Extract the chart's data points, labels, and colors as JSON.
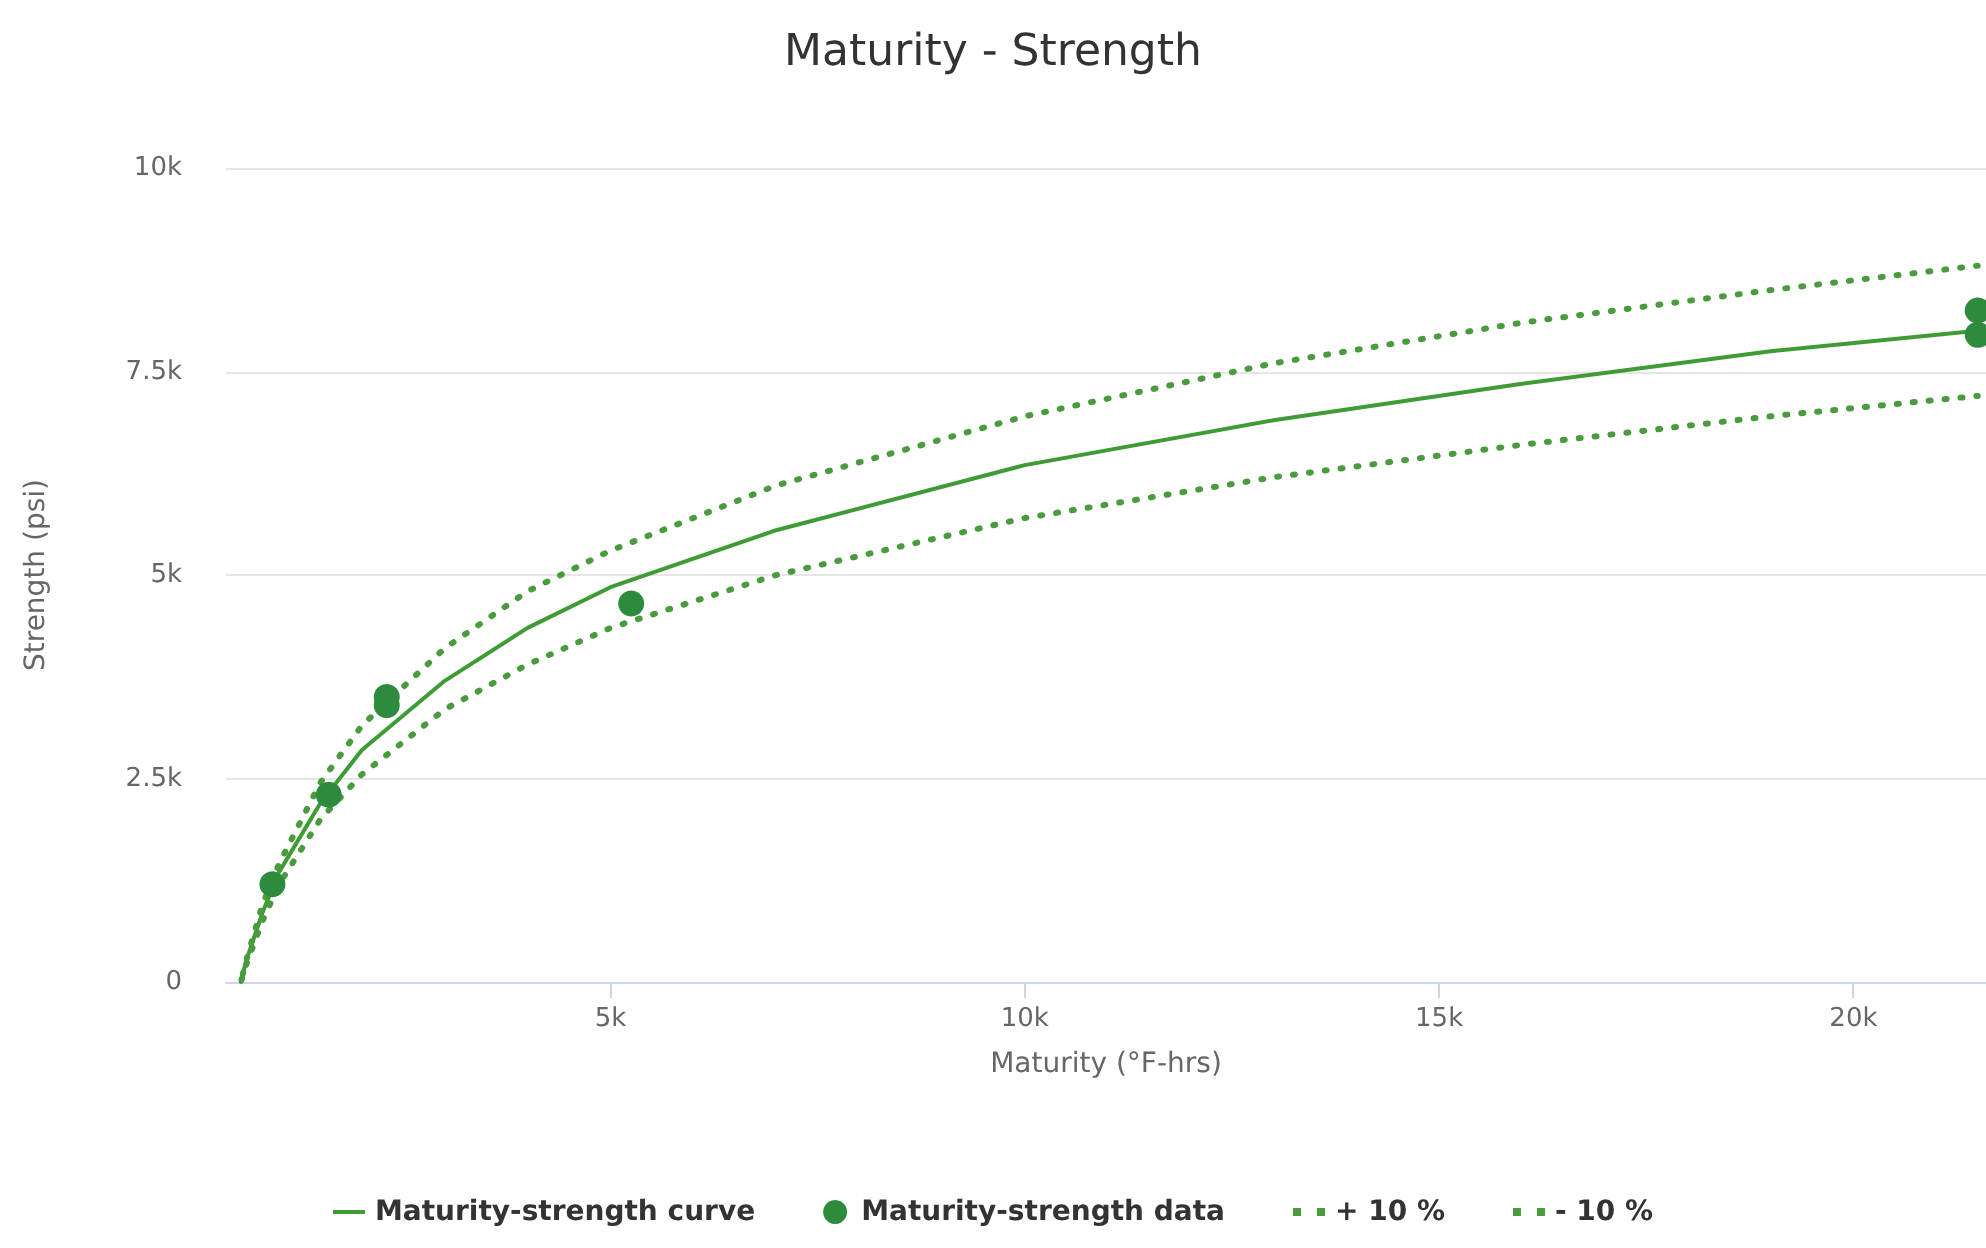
{
  "chart_data": {
    "type": "line",
    "title": "Maturity - Strength",
    "xlabel": "Maturity (°F-hrs)",
    "ylabel": "Strength (psi)",
    "xlim": [
      360,
      21600
    ],
    "xticks": [
      {
        "value": 5000,
        "label": "5k"
      },
      {
        "value": 10000,
        "label": "10k"
      },
      {
        "value": 15000,
        "label": "15k"
      },
      {
        "value": 20000,
        "label": "20k"
      }
    ],
    "ylim": [
      0,
      10000
    ],
    "yticks": [
      {
        "value": 0,
        "label": "0"
      },
      {
        "value": 2500,
        "label": "2.5k"
      },
      {
        "value": 5000,
        "label": "5k"
      },
      {
        "value": 7500,
        "label": "7.5k"
      },
      {
        "value": 10000,
        "label": "10k"
      }
    ],
    "grid": "y",
    "legend": "bottom",
    "marker": "none",
    "series": [
      {
        "name": "Maturity-strength curve",
        "color": "#3f9b35",
        "line_style": "solid",
        "x": [
          540,
          600,
          800,
          1000,
          1500,
          2000,
          3000,
          4000,
          5000,
          7000,
          10000,
          13000,
          16000,
          19000,
          21500
        ],
        "values": [
          0,
          250,
          850,
          1350,
          2200,
          2850,
          3700,
          4350,
          4850,
          5550,
          6350,
          6900,
          7350,
          7750,
          8000
        ]
      },
      {
        "name": "Maturity-strength data",
        "type": "scatter",
        "marker": "circle",
        "color": "#2e8b3e",
        "x": [
          920,
          1600,
          2300,
          2300,
          5250,
          21500,
          21500
        ],
        "values": [
          1200,
          2300,
          3500,
          3400,
          4650,
          8250,
          7950
        ]
      },
      {
        "name": "+ 10 %",
        "color": "#4a9a3e",
        "line_style": "dotted",
        "x": [
          540,
          600,
          800,
          1000,
          1500,
          2000,
          3000,
          4000,
          5000,
          7000,
          10000,
          13000,
          16000,
          19000,
          21500
        ],
        "values": [
          0,
          250,
          950,
          1450,
          2450,
          3150,
          4100,
          4800,
          5300,
          6100,
          6950,
          7600,
          8100,
          8500,
          8800
        ]
      },
      {
        "name": "- 10 %",
        "color": "#4a9a3e",
        "line_style": "dotted",
        "x": [
          540,
          600,
          800,
          1000,
          1500,
          2000,
          3000,
          4000,
          5000,
          7000,
          10000,
          13000,
          16000,
          19000,
          21500
        ],
        "values": [
          0,
          200,
          750,
          1200,
          2000,
          2550,
          3350,
          3900,
          4350,
          5000,
          5700,
          6200,
          6600,
          6950,
          7200
        ]
      }
    ]
  }
}
